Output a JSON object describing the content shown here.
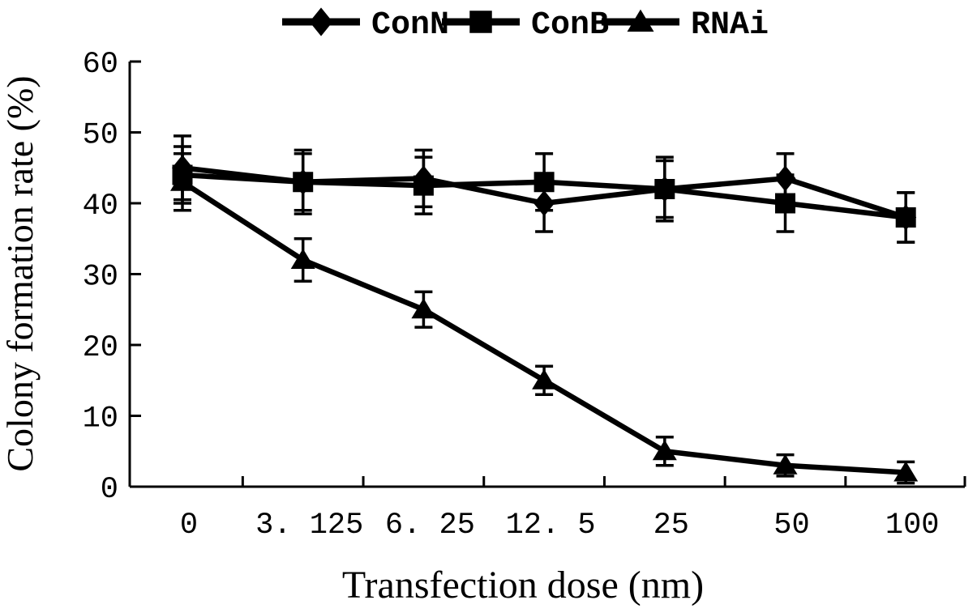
{
  "chart_data": {
    "type": "line",
    "title": "",
    "xlabel": "Transfection dose (nm)",
    "ylabel": "Colony formation rate (%)",
    "categories": [
      0,
      3.125,
      6.25,
      12.5,
      25,
      50,
      100
    ],
    "x_tick_labels": [
      "0",
      "3. 125",
      "6. 25",
      "12. 5",
      "25",
      "50",
      "100"
    ],
    "yticks": [
      0,
      10,
      20,
      30,
      40,
      50,
      60
    ],
    "ylim": [
      0,
      60
    ],
    "grid": false,
    "error_bars": true,
    "legend_position": "top-center",
    "series": [
      {
        "name": "ConN",
        "marker": "diamond",
        "values": [
          45,
          43,
          43.5,
          40,
          42,
          43.5,
          38
        ],
        "errors": [
          4.5,
          4,
          4,
          4,
          4.5,
          3.5,
          3.5
        ]
      },
      {
        "name": "ConB",
        "marker": "square",
        "values": [
          44,
          43,
          42.5,
          43,
          42,
          40,
          38
        ],
        "errors": [
          4,
          4.5,
          4,
          4,
          4,
          4,
          3.5
        ]
      },
      {
        "name": "RNAi",
        "marker": "triangle",
        "values": [
          43,
          32,
          25,
          15,
          5,
          3,
          2
        ],
        "errors": [
          4,
          3,
          2.5,
          2,
          2,
          1.5,
          1.5
        ]
      }
    ],
    "colors": {
      "ink": "#000000",
      "background": "#ffffff"
    }
  }
}
